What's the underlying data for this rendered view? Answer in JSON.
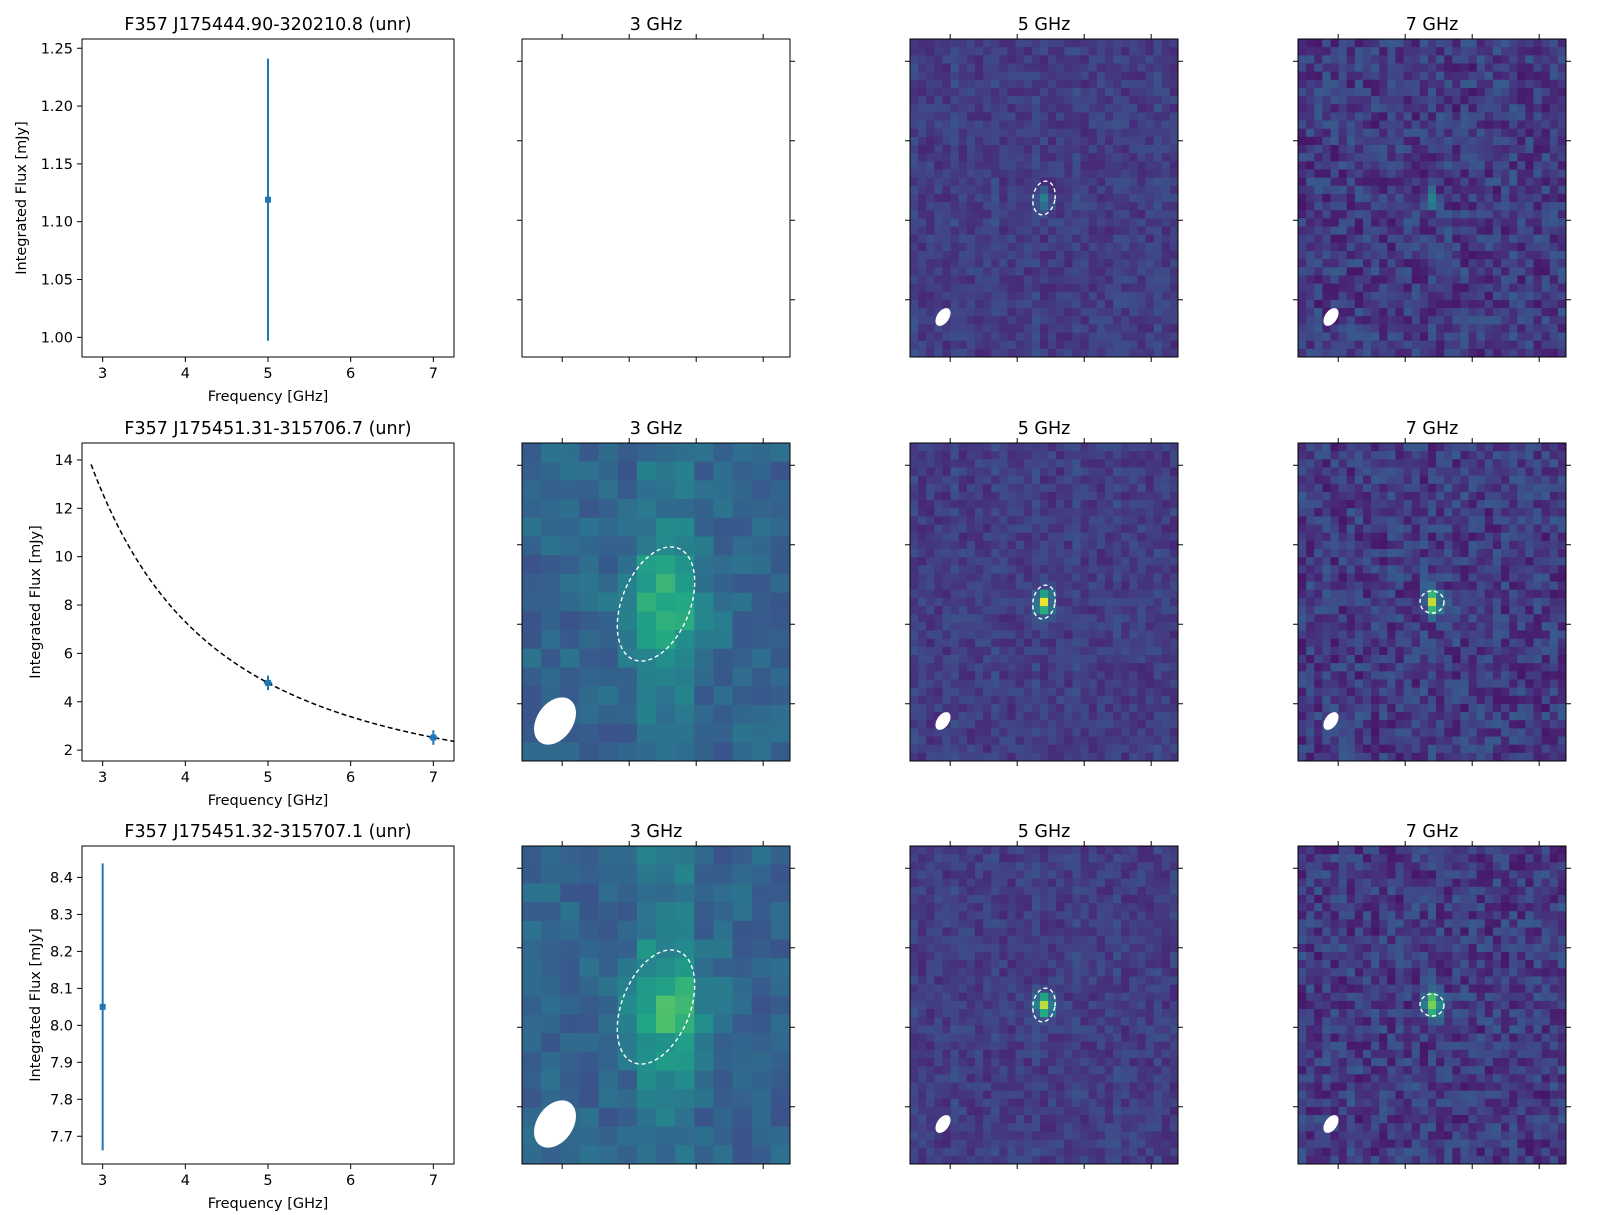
{
  "chart_data": [
    {
      "type": "scatter",
      "title": "F357 J175444.90-320210.8 (unr)",
      "xlabel": "Frequency [GHz]",
      "ylabel": "Integrated Flux [mJy]",
      "xlim": [
        2.75,
        7.25
      ],
      "ylim": [
        0.983,
        1.258
      ],
      "xticks": [
        3,
        4,
        5,
        6,
        7
      ],
      "yticks": [
        1.0,
        1.05,
        1.1,
        1.15,
        1.2,
        1.25
      ],
      "ytick_labels": [
        "1.00",
        "1.05",
        "1.10",
        "1.15",
        "1.20",
        "1.25"
      ],
      "points": [
        {
          "x": 5.0,
          "y": 1.119,
          "yerr_low": 0.997,
          "yerr_high": 1.241,
          "xerr": 0.0
        }
      ],
      "fit_curve": null
    },
    {
      "type": "scatter",
      "title": "F357 J175451.31-315706.7 (unr)",
      "xlabel": "Frequency [GHz]",
      "ylabel": "Integrated Flux [mJy]",
      "xlim": [
        2.75,
        7.25
      ],
      "ylim": [
        1.55,
        14.7
      ],
      "xticks": [
        3,
        4,
        5,
        6,
        7
      ],
      "yticks": [
        2,
        4,
        6,
        8,
        10,
        12,
        14
      ],
      "ytick_labels": [
        "2",
        "4",
        "6",
        "8",
        "10",
        "12",
        "14"
      ],
      "points": [
        {
          "x": 5.0,
          "y": 4.78,
          "yerr_low": 4.48,
          "yerr_high": 5.08,
          "xerr": 0.05
        },
        {
          "x": 7.0,
          "y": 2.52,
          "yerr_low": 2.22,
          "yerr_high": 2.82,
          "xerr": 0.05
        }
      ],
      "fit_curve": {
        "style": "dashed",
        "color": "#000000",
        "x_start": 2.86,
        "x_end": 7.25,
        "ref_x": 5.0,
        "ref_y": 4.78,
        "index": -1.9
      }
    },
    {
      "type": "scatter",
      "title": "F357 J175451.32-315707.1 (unr)",
      "xlabel": "Frequency [GHz]",
      "ylabel": "Integrated Flux [mJy]",
      "xlim": [
        2.75,
        7.25
      ],
      "ylim": [
        7.625,
        8.485
      ],
      "xticks": [
        3,
        4,
        5,
        6,
        7
      ],
      "yticks": [
        7.7,
        7.8,
        7.9,
        8.0,
        8.1,
        8.2,
        8.3,
        8.4
      ],
      "ytick_labels": [
        "7.7",
        "7.8",
        "7.9",
        "8.0",
        "8.1",
        "8.2",
        "8.3",
        "8.4"
      ],
      "points": [
        {
          "x": 3.0,
          "y": 8.05,
          "yerr_low": 7.662,
          "yerr_high": 8.438,
          "xerr": 0.0
        }
      ],
      "fit_curve": null
    }
  ],
  "image_panels": [
    [
      {
        "title": "3 GHz",
        "has_image": false,
        "seed": 11,
        "style": "fine",
        "source": null,
        "beam": false,
        "ellipse": false
      },
      {
        "title": "5 GHz",
        "has_image": true,
        "seed": 21,
        "style": "fine",
        "source": "faint",
        "beam": true,
        "ellipse": true
      },
      {
        "title": "7 GHz",
        "has_image": true,
        "seed": 31,
        "style": "speckle",
        "source": "faint",
        "beam": true,
        "ellipse": false
      }
    ],
    [
      {
        "title": "3 GHz",
        "has_image": true,
        "seed": 41,
        "style": "coarse",
        "source": "extended",
        "beam": true,
        "ellipse": true
      },
      {
        "title": "5 GHz",
        "has_image": true,
        "seed": 51,
        "style": "fine",
        "source": "bright",
        "beam": true,
        "ellipse": true
      },
      {
        "title": "7 GHz",
        "has_image": true,
        "seed": 61,
        "style": "speckle",
        "source": "bright",
        "beam": true,
        "ellipse": true
      }
    ],
    [
      {
        "title": "3 GHz",
        "has_image": true,
        "seed": 71,
        "style": "coarse",
        "source": "extended",
        "beam": true,
        "ellipse": true
      },
      {
        "title": "5 GHz",
        "has_image": true,
        "seed": 81,
        "style": "fine",
        "source": "bright",
        "beam": true,
        "ellipse": true
      },
      {
        "title": "7 GHz",
        "has_image": true,
        "seed": 91,
        "style": "speckle",
        "source": "bright",
        "beam": true,
        "ellipse": true
      }
    ]
  ],
  "colors": {
    "errorbar": "#1f77b4",
    "fit_line": "#000000",
    "contour": "#ffffff",
    "beam": "#ffffff",
    "colormap": "viridis"
  }
}
